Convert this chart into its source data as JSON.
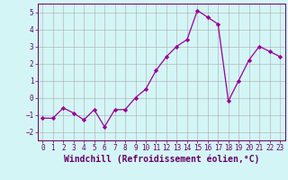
{
  "x": [
    0,
    1,
    2,
    3,
    4,
    5,
    6,
    7,
    8,
    9,
    10,
    11,
    12,
    13,
    14,
    15,
    16,
    17,
    18,
    19,
    20,
    21,
    22,
    23
  ],
  "y": [
    -1.2,
    -1.2,
    -0.6,
    -0.9,
    -1.3,
    -0.7,
    -1.7,
    -0.7,
    -0.7,
    0.0,
    0.5,
    1.6,
    2.4,
    3.0,
    3.4,
    5.1,
    4.7,
    4.3,
    -0.2,
    1.0,
    2.2,
    3.0,
    2.7,
    2.4
  ],
  "line_color": "#990099",
  "marker": "D",
  "marker_size": 2.2,
  "bg_color": "#d4f5f5",
  "grid_color": "#aaaaaa",
  "xlabel": "Windchill (Refroidissement éolien,°C)",
  "xlim": [
    -0.5,
    23.5
  ],
  "ylim": [
    -2.5,
    5.5
  ],
  "yticks": [
    -2,
    -1,
    0,
    1,
    2,
    3,
    4,
    5
  ],
  "xticks": [
    0,
    1,
    2,
    3,
    4,
    5,
    6,
    7,
    8,
    9,
    10,
    11,
    12,
    13,
    14,
    15,
    16,
    17,
    18,
    19,
    20,
    21,
    22,
    23
  ],
  "tick_fontsize": 5.5,
  "xlabel_fontsize": 7.0,
  "spine_color": "#660066",
  "text_color": "#660066"
}
